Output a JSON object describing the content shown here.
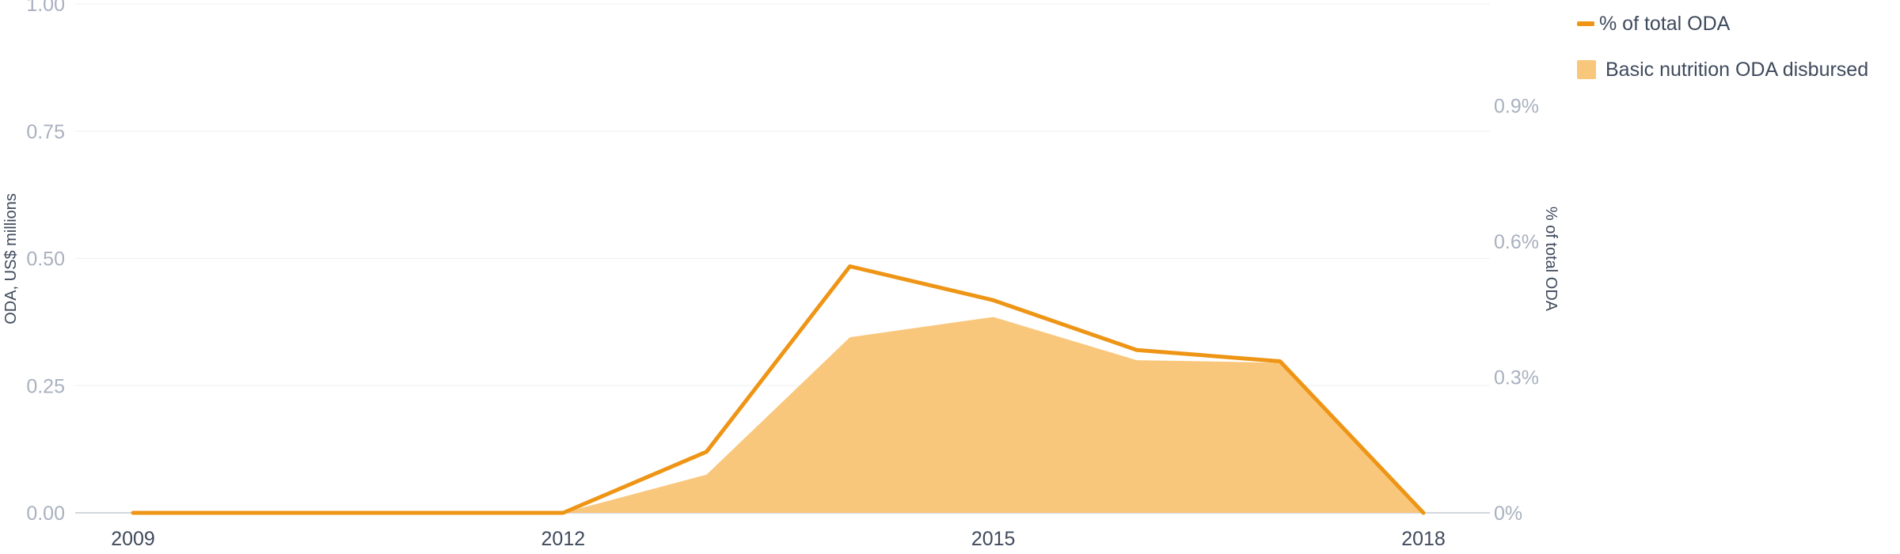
{
  "chart_data": {
    "type": "area",
    "x": [
      2009,
      2010,
      2011,
      2012,
      2013,
      2014,
      2015,
      2016,
      2017,
      2018
    ],
    "x_ticks": [
      "2009",
      "2012",
      "2015",
      "2018"
    ],
    "series": [
      {
        "name": "Basic nutrition ODA disbursed",
        "kind": "area",
        "axis": "left",
        "color": "#f9c77b",
        "values": [
          0,
          0,
          0,
          0,
          0.075,
          0.345,
          0.385,
          0.3,
          0.295,
          0
        ]
      },
      {
        "name": "% of total ODA",
        "kind": "line",
        "axis": "right",
        "color": "#ee9516",
        "values": [
          0,
          0,
          0,
          0,
          0.135,
          0.545,
          0.47,
          0.36,
          0.335,
          0
        ]
      }
    ],
    "left_axis": {
      "label": "ODA, US$ millions",
      "ylim": [
        0,
        1
      ],
      "ticks": [
        0,
        0.25,
        0.5,
        0.75,
        1.0
      ],
      "tick_labels": [
        "0.00",
        "0.25",
        "0.50",
        "0.75",
        "1.00"
      ]
    },
    "right_axis": {
      "label": "% of total ODA",
      "ylim": [
        0,
        1.125
      ],
      "ticks": [
        0,
        0.3,
        0.6,
        0.9
      ],
      "tick_labels": [
        "0%",
        "0.3%",
        "0.6%",
        "0.9%"
      ]
    },
    "grid": true,
    "legend_position": "top-right"
  }
}
